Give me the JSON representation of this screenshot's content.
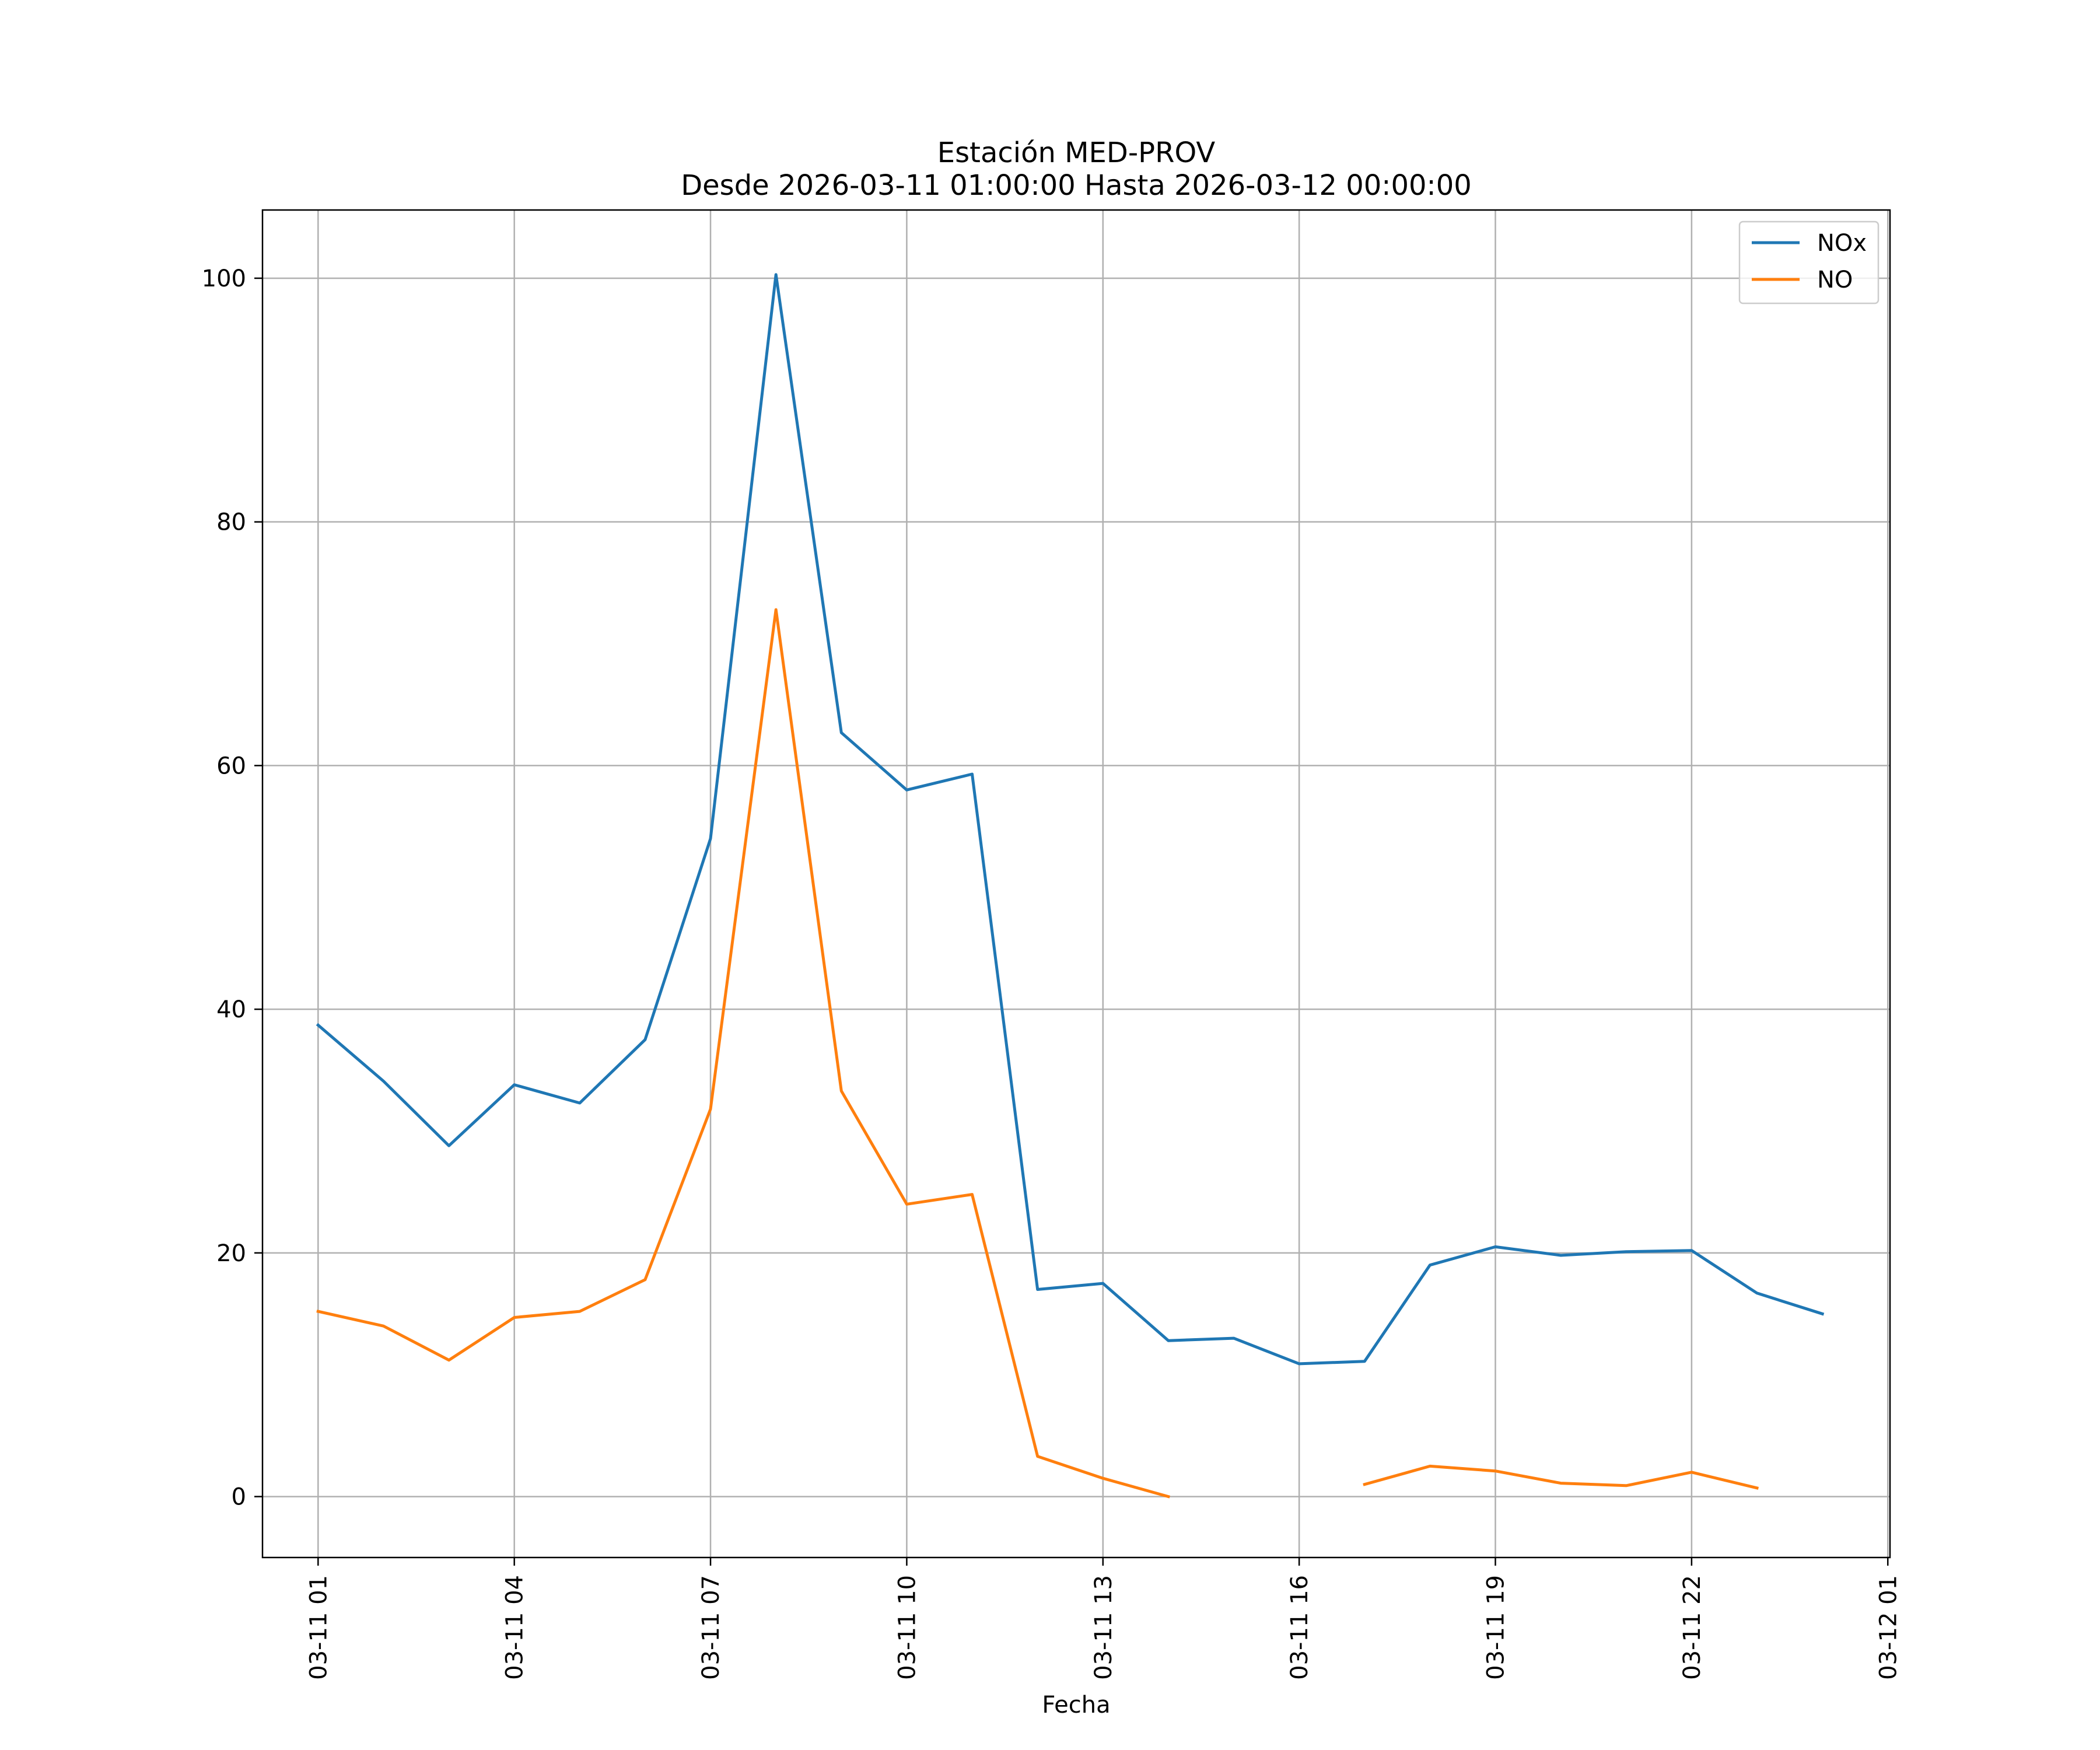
{
  "chart_data": {
    "type": "line",
    "title": "Estación MED-PROV",
    "subtitle": "Desde 2026-03-11 01:00:00 Hasta 2026-03-12 00:00:00",
    "xlabel": "Fecha",
    "ylabel": "",
    "x": [
      "2026-03-11 01:00",
      "2026-03-11 02:00",
      "2026-03-11 03:00",
      "2026-03-11 04:00",
      "2026-03-11 05:00",
      "2026-03-11 06:00",
      "2026-03-11 07:00",
      "2026-03-11 08:00",
      "2026-03-11 09:00",
      "2026-03-11 10:00",
      "2026-03-11 11:00",
      "2026-03-11 12:00",
      "2026-03-11 13:00",
      "2026-03-11 14:00",
      "2026-03-11 15:00",
      "2026-03-11 16:00",
      "2026-03-11 17:00",
      "2026-03-11 18:00",
      "2026-03-11 19:00",
      "2026-03-11 20:00",
      "2026-03-11 21:00",
      "2026-03-11 22:00",
      "2026-03-11 23:00",
      "2026-03-12 00:00"
    ],
    "series": [
      {
        "name": "NOx",
        "color": "#1f77b4",
        "values": [
          38.7,
          34.1,
          28.8,
          33.8,
          32.3,
          37.5,
          54.0,
          100.3,
          62.7,
          58.0,
          59.3,
          17.0,
          17.5,
          12.8,
          13.0,
          10.9,
          11.1,
          19.0,
          20.5,
          19.8,
          20.1,
          20.2,
          16.7,
          15.0
        ]
      },
      {
        "name": "NO",
        "color": "#ff7f0e",
        "values": [
          15.2,
          14.0,
          11.2,
          14.7,
          15.2,
          17.8,
          31.8,
          72.8,
          33.3,
          24.0,
          24.8,
          3.3,
          1.5,
          0.0,
          null,
          null,
          1.0,
          2.5,
          2.1,
          1.1,
          0.9,
          2.0,
          0.7,
          null
        ]
      }
    ],
    "x_ticks": [
      "03-11 01",
      "03-11 04",
      "03-11 07",
      "03-11 10",
      "03-11 13",
      "03-11 16",
      "03-11 19",
      "03-11 22",
      "03-12 01"
    ],
    "y_ticks": [
      "0",
      "20",
      "40",
      "60",
      "80",
      "100"
    ],
    "ylim": [
      -5.0,
      105.6
    ],
    "xlim": [
      "2026-03-11 00:09",
      "2026-03-12 01:02"
    ],
    "grid": true,
    "legend_position": "top-right"
  }
}
